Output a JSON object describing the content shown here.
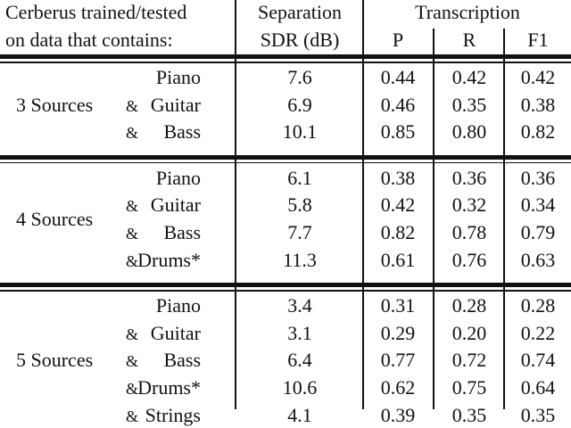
{
  "header": {
    "col1_line1": "Cerberus trained/tested",
    "col1_line2": "on data that contains:",
    "sep_line1": "Separation",
    "sep_line2": "SDR (dB)",
    "trans": "Transcription",
    "p": "P",
    "r": "R",
    "f1": "F1"
  },
  "groups": [
    {
      "label": "3 Sources",
      "rows": [
        {
          "inst": "Piano",
          "amp": "",
          "sdr": "7.6",
          "p": "0.44",
          "r": "0.42",
          "f1": "0.42"
        },
        {
          "inst": "Guitar",
          "amp": "&",
          "sdr": "6.9",
          "p": "0.46",
          "r": "0.35",
          "f1": "0.38"
        },
        {
          "inst": "Bass",
          "amp": "&",
          "sdr": "10.1",
          "p": "0.85",
          "r": "0.80",
          "f1": "0.82"
        }
      ]
    },
    {
      "label": "4 Sources",
      "rows": [
        {
          "inst": "Piano",
          "amp": "",
          "sdr": "6.1",
          "p": "0.38",
          "r": "0.36",
          "f1": "0.36"
        },
        {
          "inst": "Guitar",
          "amp": "&",
          "sdr": "5.8",
          "p": "0.42",
          "r": "0.32",
          "f1": "0.34"
        },
        {
          "inst": "Bass",
          "amp": "&",
          "sdr": "7.7",
          "p": "0.82",
          "r": "0.78",
          "f1": "0.79"
        },
        {
          "inst": "Drums*",
          "amp": "&",
          "sdr": "11.3",
          "p": "0.61",
          "r": "0.76",
          "f1": "0.63"
        }
      ]
    },
    {
      "label": "5 Sources",
      "rows": [
        {
          "inst": "Piano",
          "amp": "",
          "sdr": "3.4",
          "p": "0.31",
          "r": "0.28",
          "f1": "0.28"
        },
        {
          "inst": "Guitar",
          "amp": "&",
          "sdr": "3.1",
          "p": "0.29",
          "r": "0.20",
          "f1": "0.22"
        },
        {
          "inst": "Bass",
          "amp": "&",
          "sdr": "6.4",
          "p": "0.77",
          "r": "0.72",
          "f1": "0.74"
        },
        {
          "inst": "Drums*",
          "amp": "&",
          "sdr": "10.6",
          "p": "0.62",
          "r": "0.75",
          "f1": "0.64"
        },
        {
          "inst": "Strings",
          "amp": "&",
          "sdr": "4.1",
          "p": "0.39",
          "r": "0.35",
          "f1": "0.35"
        }
      ]
    }
  ]
}
